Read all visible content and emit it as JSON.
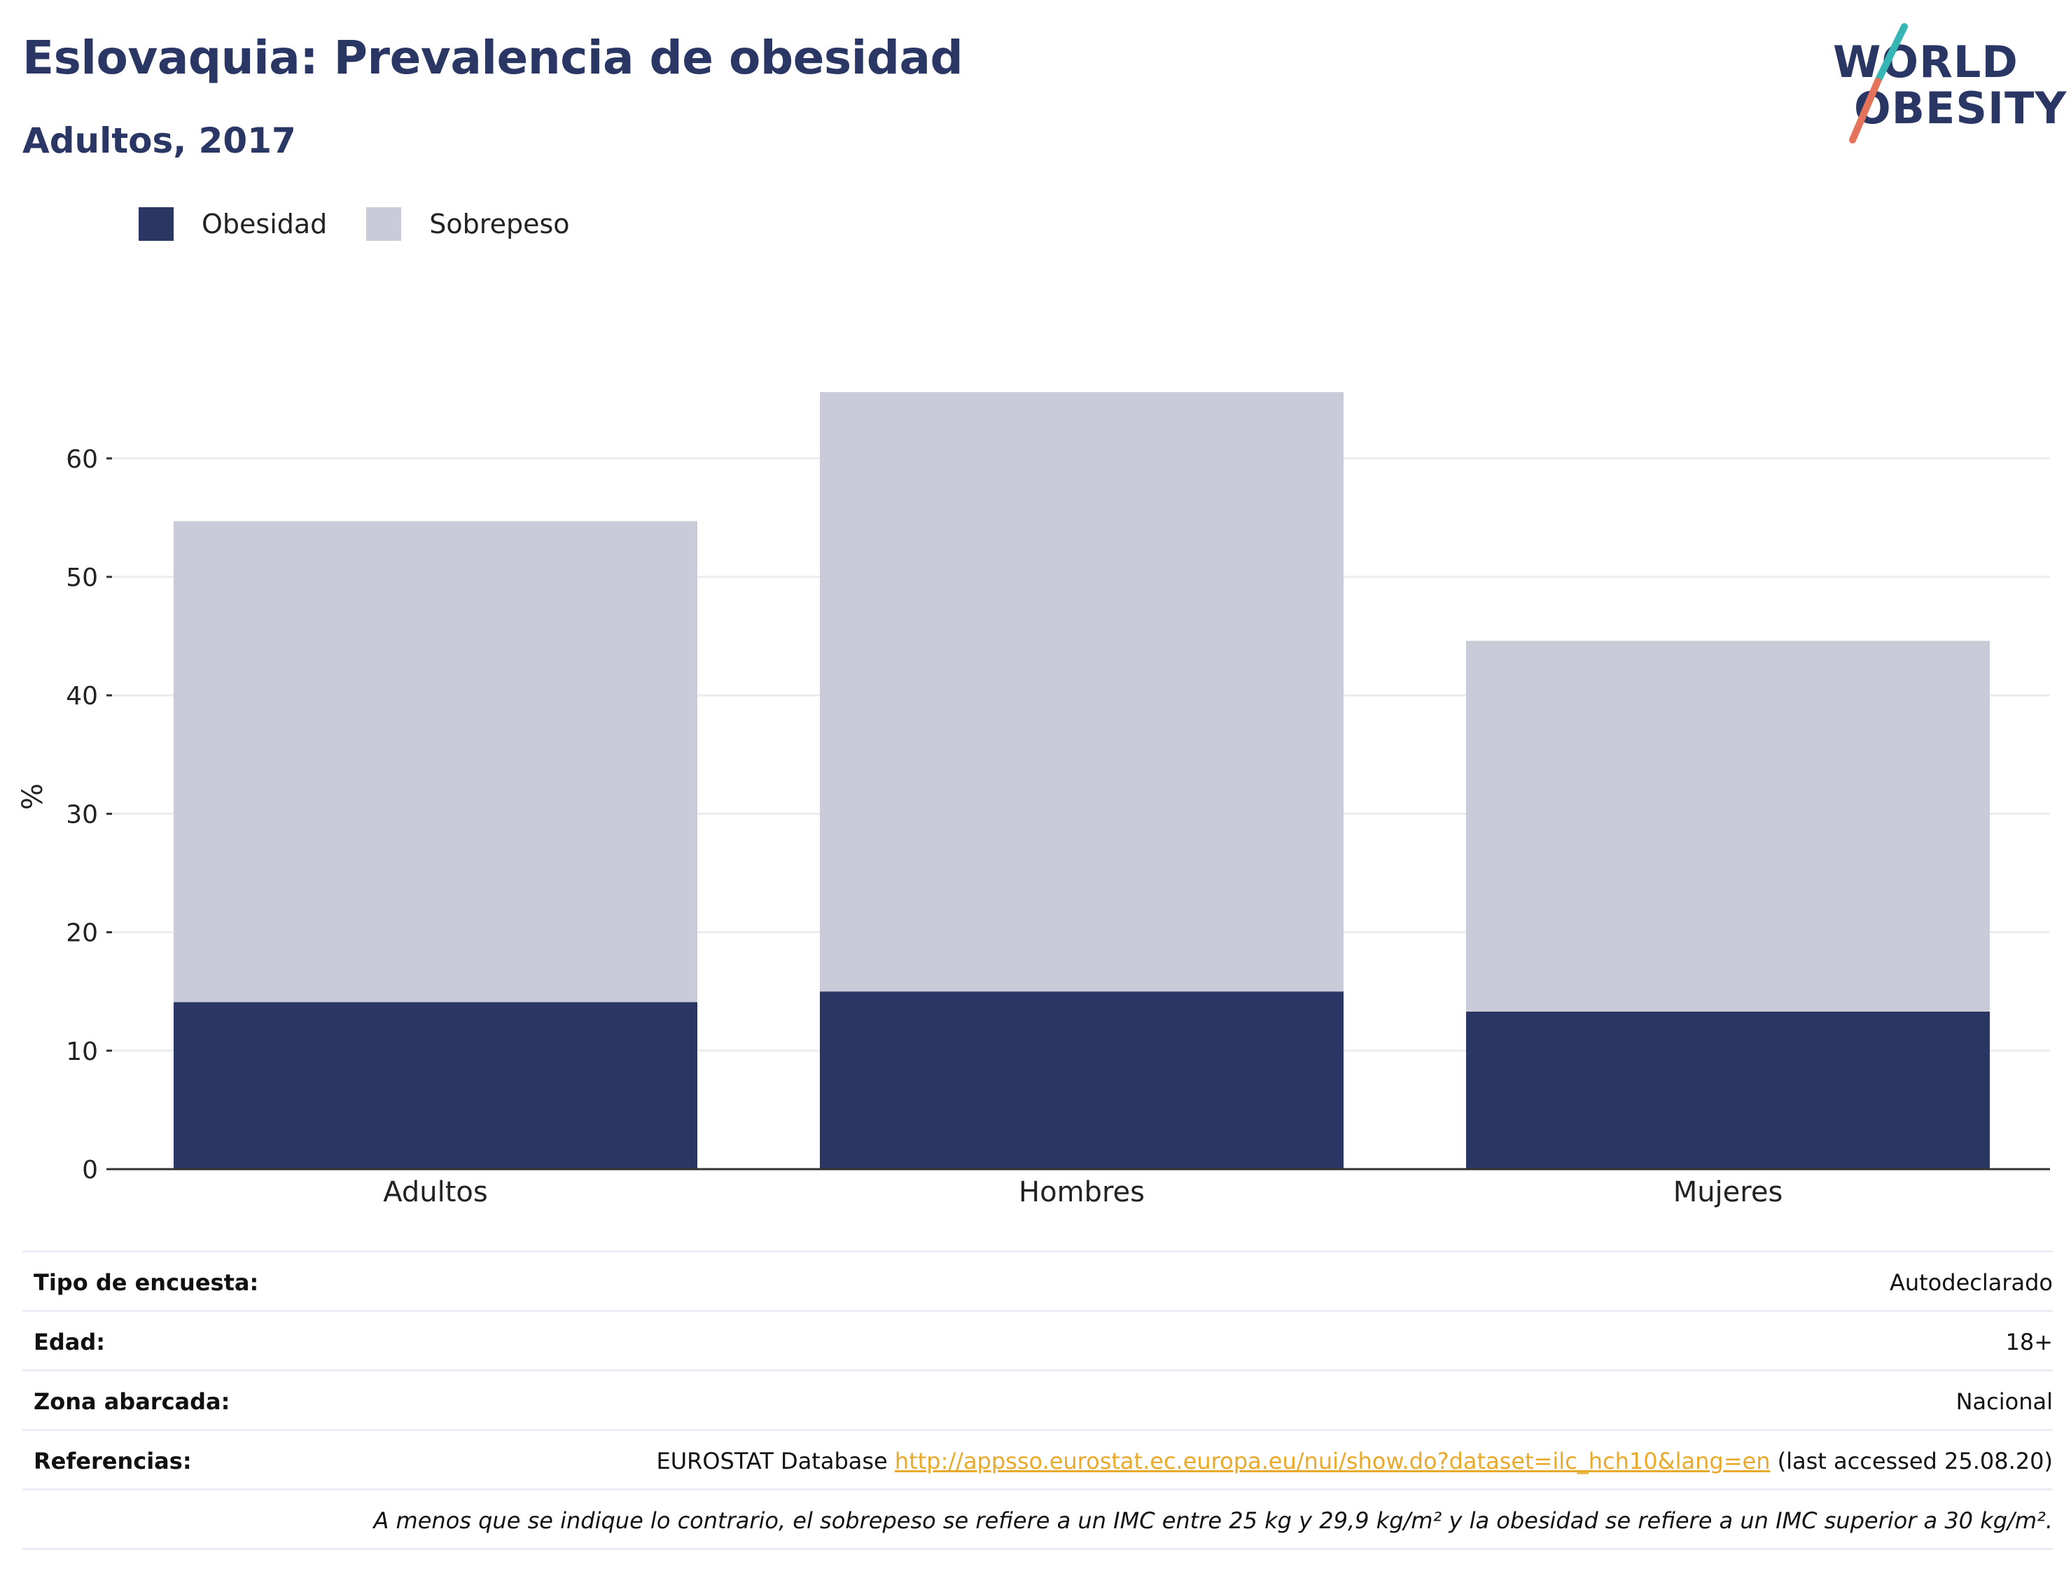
{
  "title": "Eslovaquia: Prevalencia de obesidad",
  "subtitle": "Adultos, 2017",
  "logo": {
    "line1": "WORLD",
    "line2": "OBESITY",
    "slash_colors": [
      "#35b6b4",
      "#e5735a"
    ]
  },
  "legend": [
    {
      "label": "Obesidad",
      "color": "#2a3764"
    },
    {
      "label": "Sobrepeso",
      "color": "#c9ccd8"
    }
  ],
  "chart_data": {
    "type": "bar",
    "stacked": true,
    "categories": [
      "Adultos",
      "Hombres",
      "Mujeres"
    ],
    "series": [
      {
        "name": "Obesidad",
        "color": "#2a3764",
        "values": [
          14.1,
          15.0,
          13.3
        ]
      },
      {
        "name": "Sobrepeso",
        "color": "#c9ccd8",
        "values": [
          40.6,
          50.6,
          31.3
        ]
      }
    ],
    "ylabel": "%",
    "xlabel": "",
    "ylim": [
      0,
      70
    ],
    "yticks": [
      0,
      10,
      20,
      30,
      40,
      50,
      60
    ],
    "grid": true,
    "legend_position": "top-left"
  },
  "info": {
    "rows": [
      {
        "label": "Tipo de encuesta:",
        "value": "Autodeclarado"
      },
      {
        "label": "Edad:",
        "value": "18+"
      },
      {
        "label": "Zona abarcada:",
        "value": "Nacional"
      }
    ],
    "references": {
      "label": "Referencias:",
      "prefix": "EUROSTAT Database ",
      "link": "http://appsso.eurostat.ec.europa.eu/nui/show.do?dataset=ilc_hch10&lang=en",
      "suffix": " (last accessed 25.08.20)"
    },
    "note": "A menos que se indique lo contrario, el sobrepeso se refiere a un IMC entre 25 kg y 29,9 kg/m² y la obesidad se refiere a un IMC superior a 30 kg/m²."
  }
}
